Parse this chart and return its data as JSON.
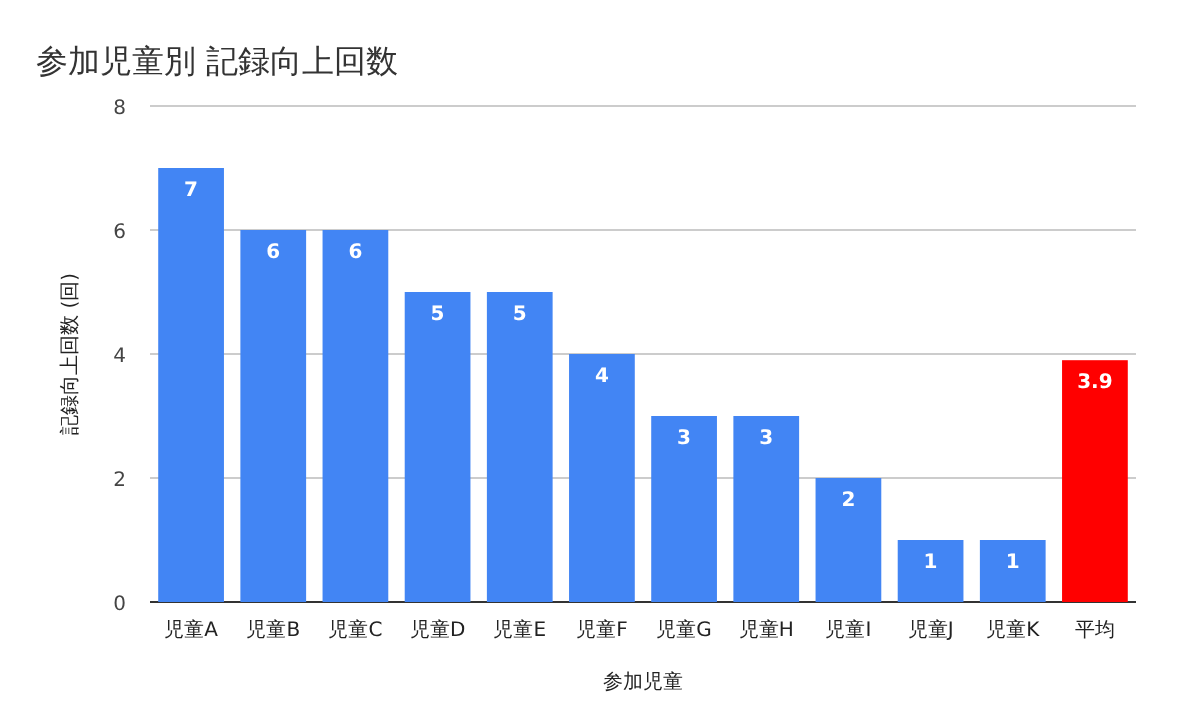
{
  "chart_data": {
    "type": "bar",
    "title": "参加児童別 記録向上回数",
    "xlabel": "参加児童",
    "ylabel": "記録向上回数 (回)",
    "categories": [
      "児童A",
      "児童B",
      "児童C",
      "児童D",
      "児童E",
      "児童F",
      "児童G",
      "児童H",
      "児童I",
      "児童J",
      "児童K",
      "平均"
    ],
    "values": [
      7,
      6,
      6,
      5,
      5,
      4,
      3,
      3,
      2,
      1,
      1,
      3.9
    ],
    "colors": [
      "#4285f4",
      "#4285f4",
      "#4285f4",
      "#4285f4",
      "#4285f4",
      "#4285f4",
      "#4285f4",
      "#4285f4",
      "#4285f4",
      "#4285f4",
      "#4285f4",
      "#ff0000"
    ],
    "ylim": [
      0,
      8
    ],
    "yticks": [
      0,
      2,
      4,
      6,
      8
    ],
    "grid": "y",
    "data_labels": true
  }
}
